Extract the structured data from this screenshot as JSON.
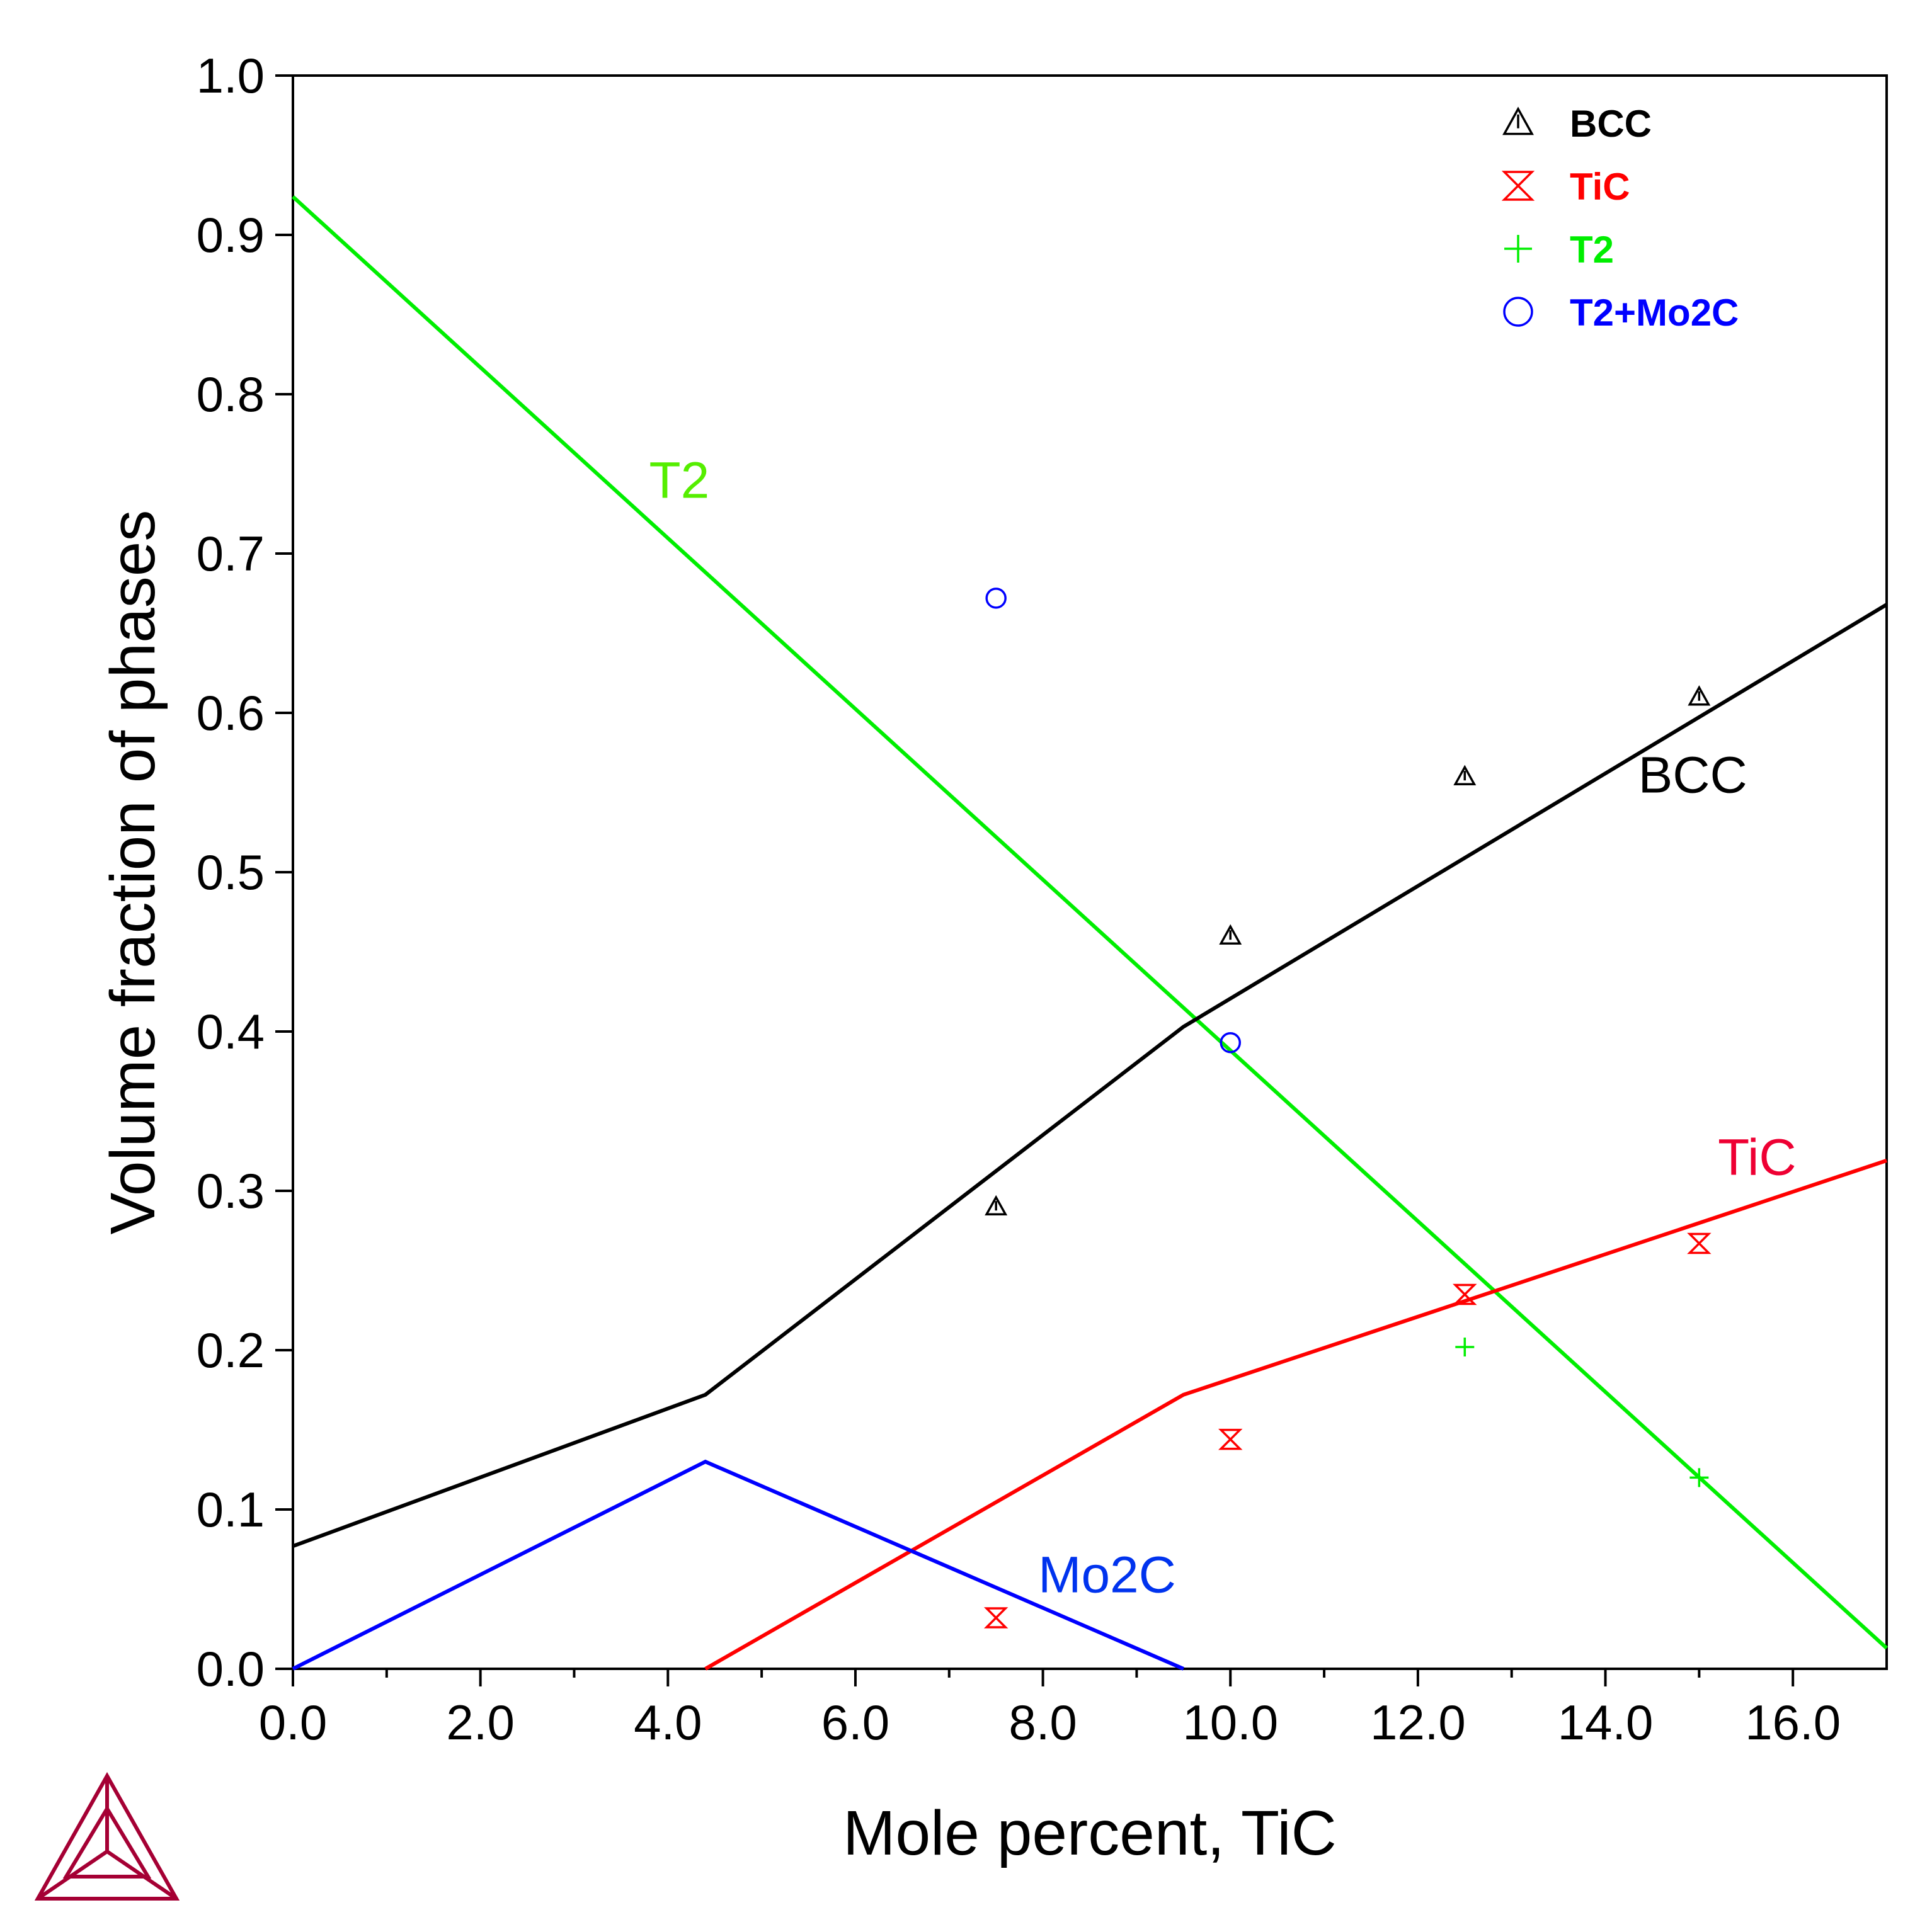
{
  "chart_data": {
    "type": "line",
    "title": "",
    "xlabel": "Mole percent, TiC",
    "ylabel": "Volume fraction of phases",
    "xlim": [
      0,
      17
    ],
    "ylim": [
      0,
      1.0
    ],
    "x_ticks": [
      "0.0",
      "2.0",
      "4.0",
      "6.0",
      "8.0",
      "10.0",
      "12.0",
      "14.0",
      "16.0"
    ],
    "y_ticks": [
      "0.0",
      "0.1",
      "0.2",
      "0.3",
      "0.4",
      "0.5",
      "0.6",
      "0.7",
      "0.8",
      "0.9",
      "1.0"
    ],
    "grid": false,
    "legend_position": "top-right",
    "lines": [
      {
        "label": "T2",
        "color": "#00ee00",
        "x": [
          0,
          17
        ],
        "y": [
          0.924,
          0.013
        ]
      },
      {
        "label": "BCC",
        "color": "#000000",
        "x": [
          0,
          4.4,
          9.5,
          17
        ],
        "y": [
          0.077,
          0.172,
          0.403,
          0.668
        ]
      },
      {
        "label": "TiC",
        "color": "#ff0000",
        "x": [
          4.4,
          9.5,
          17
        ],
        "y": [
          0.0,
          0.172,
          0.319
        ]
      },
      {
        "label": "Mo2C",
        "color": "#0000ff",
        "x": [
          0,
          4.4,
          9.5
        ],
        "y": [
          0.0,
          0.13,
          0.0
        ]
      }
    ],
    "curve_labels": [
      {
        "text": "T2",
        "color": "#55ee00",
        "x": 3.8,
        "y": 0.735
      },
      {
        "text": "BCC",
        "color": "#000000",
        "x": 14.35,
        "y": 0.55
      },
      {
        "text": "TiC",
        "color": "#ee0033",
        "x": 15.2,
        "y": 0.31
      },
      {
        "text": "Mo2C",
        "color": "#0033ee",
        "x": 7.95,
        "y": 0.048
      }
    ],
    "points": [
      {
        "series": "BCC",
        "marker": "triangle",
        "color": "#000000",
        "x": [
          7.5,
          10,
          12.5,
          15
        ],
        "y": [
          0.29,
          0.46,
          0.56,
          0.61
        ]
      },
      {
        "series": "TiC",
        "marker": "hourglass",
        "color": "#ff0000",
        "x": [
          7.5,
          10,
          12.5,
          15
        ],
        "y": [
          0.032,
          0.144,
          0.235,
          0.267
        ]
      },
      {
        "series": "T2",
        "marker": "plus",
        "color": "#00ee00",
        "x": [
          12.5,
          15
        ],
        "y": [
          0.202,
          0.12
        ]
      },
      {
        "series": "T2+Mo2C",
        "marker": "circle",
        "color": "#0000ff",
        "x": [
          7.5,
          10
        ],
        "y": [
          0.672,
          0.393
        ]
      }
    ],
    "legend": [
      {
        "label": "BCC",
        "marker": "triangle",
        "color": "#000000"
      },
      {
        "label": "TiC",
        "marker": "hourglass",
        "color": "#ff0000"
      },
      {
        "label": "T2",
        "marker": "plus",
        "color": "#00ee00"
      },
      {
        "label": "T2+Mo2C",
        "marker": "circle",
        "color": "#0000ff"
      }
    ]
  },
  "logo": {
    "name": "thermo-calc-logo-icon",
    "color": "#a50034"
  }
}
